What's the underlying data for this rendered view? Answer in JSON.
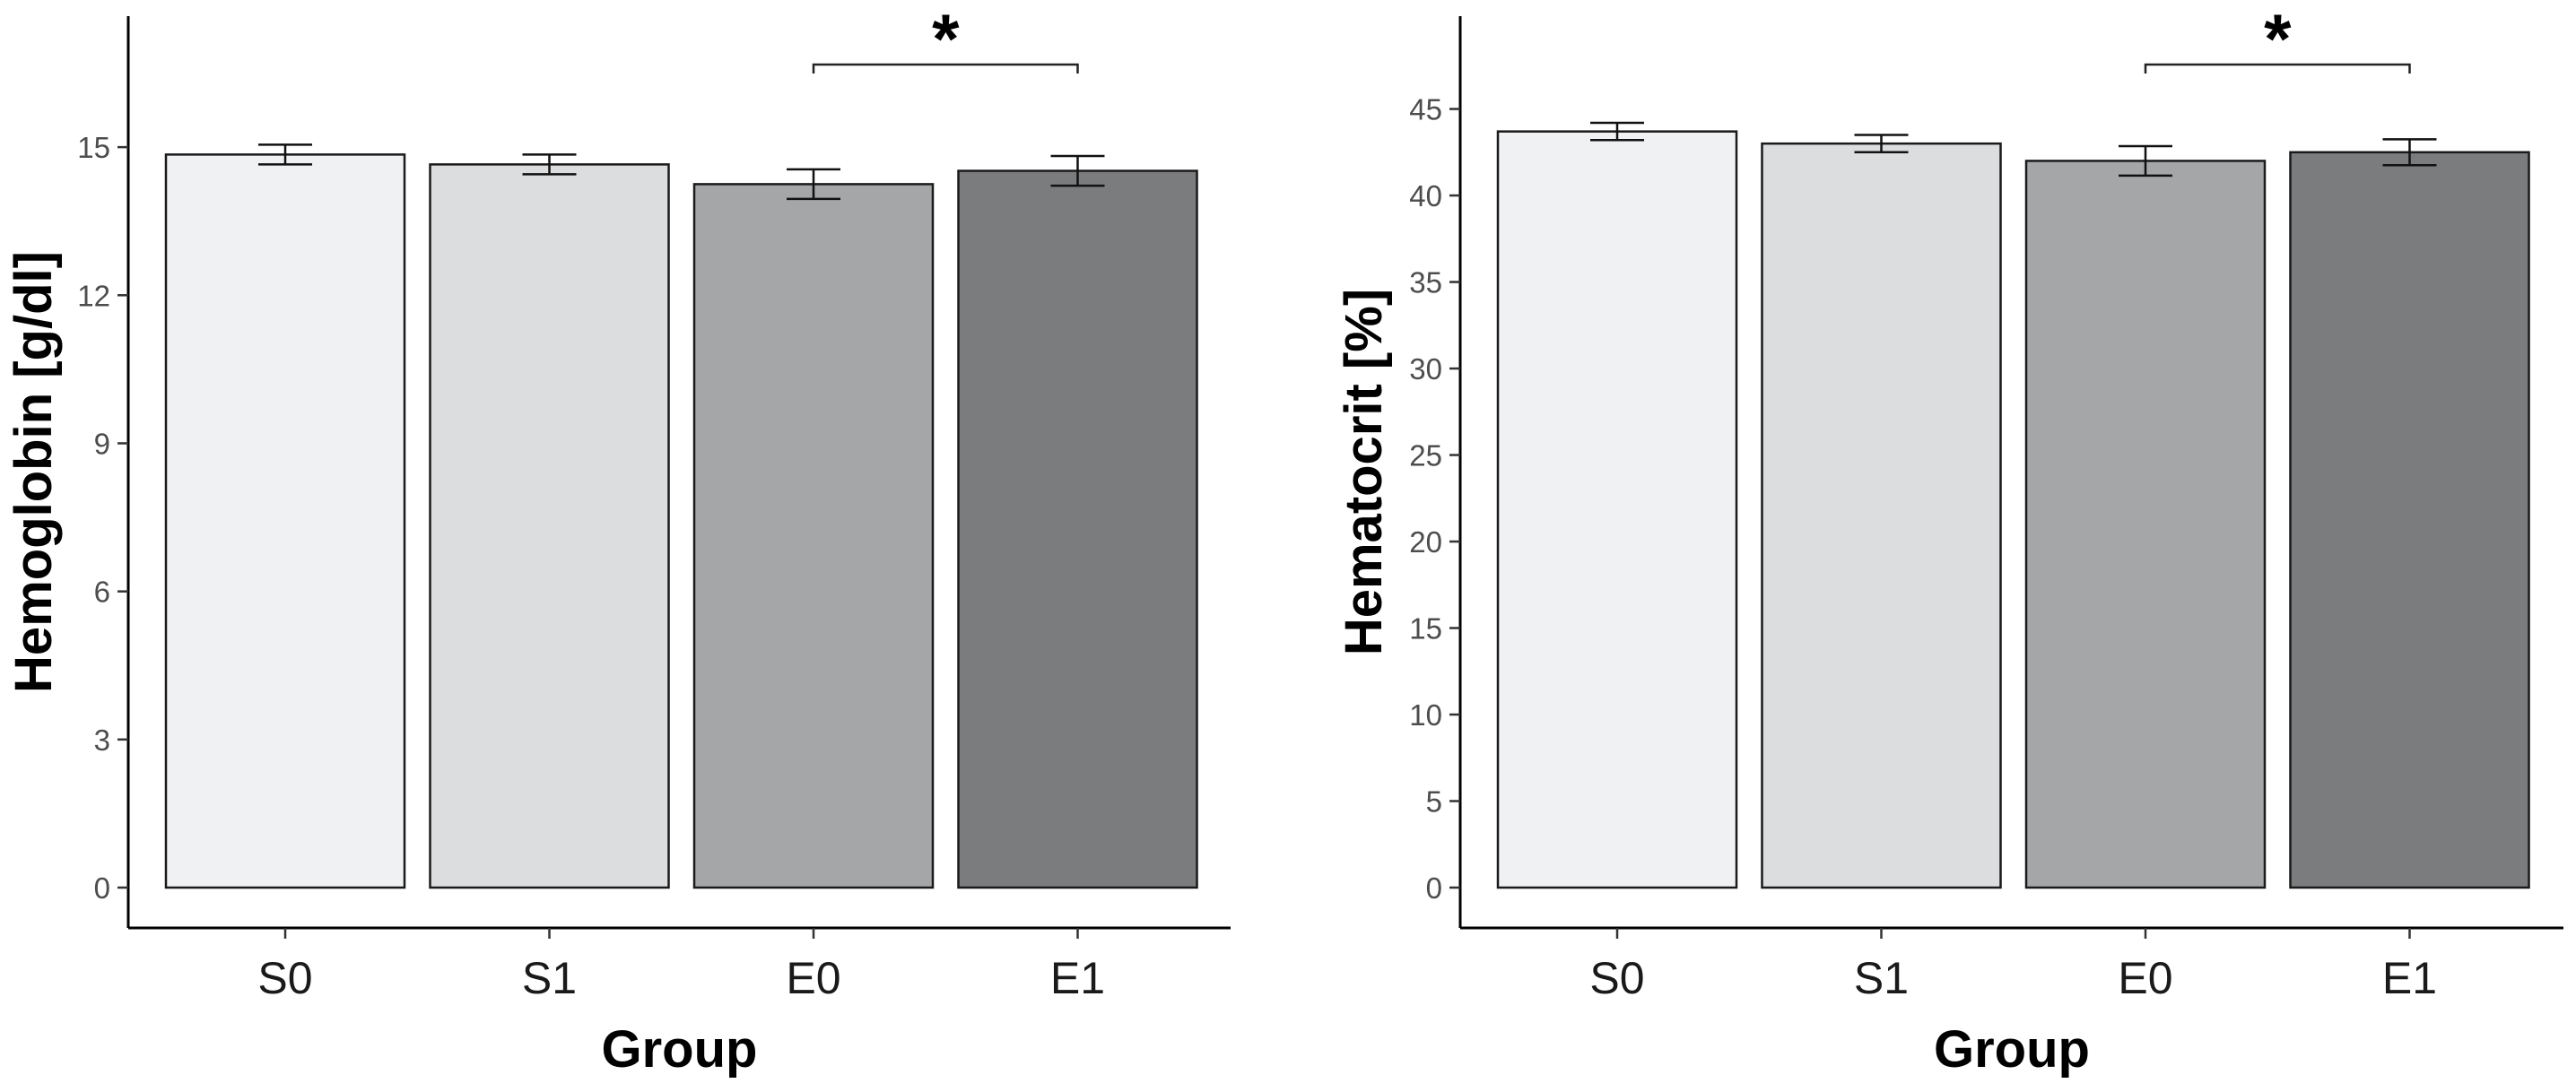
{
  "chart_data": [
    {
      "type": "bar",
      "categories": [
        "S0",
        "S1",
        "E0",
        "E1"
      ],
      "values": [
        14.85,
        14.65,
        14.25,
        14.52
      ],
      "error": [
        0.2,
        0.2,
        0.3,
        0.3
      ],
      "colors": [
        "#f0f1f3",
        "#dcdddf",
        "#a5a6a8",
        "#7b7c7e"
      ],
      "xlabel": "Group",
      "ylabel": "Hemoglobin [g/dl]",
      "ylim": [
        0,
        17
      ],
      "yticks": [
        0,
        3,
        6,
        9,
        12,
        15
      ],
      "significance": {
        "from": "E0",
        "to": "E1",
        "level": 16.1,
        "label": "*"
      },
      "grid": false,
      "legend": "none"
    },
    {
      "type": "bar",
      "categories": [
        "S0",
        "S1",
        "E0",
        "E1"
      ],
      "values": [
        43.7,
        43.0,
        42.0,
        42.5
      ],
      "error": [
        0.5,
        0.5,
        0.85,
        0.75
      ],
      "colors": [
        "#f0f1f3",
        "#dcdddf",
        "#a5a6a8",
        "#7b7c7e"
      ],
      "xlabel": "Group",
      "ylabel": "Hematocrit [%]",
      "ylim": [
        0,
        48.5
      ],
      "yticks": [
        0,
        5,
        10,
        15,
        20,
        25,
        30,
        35,
        40,
        45
      ],
      "significance": {
        "from": "E0",
        "to": "E1",
        "level": 46.2,
        "label": "*"
      },
      "grid": false,
      "legend": "none"
    }
  ]
}
